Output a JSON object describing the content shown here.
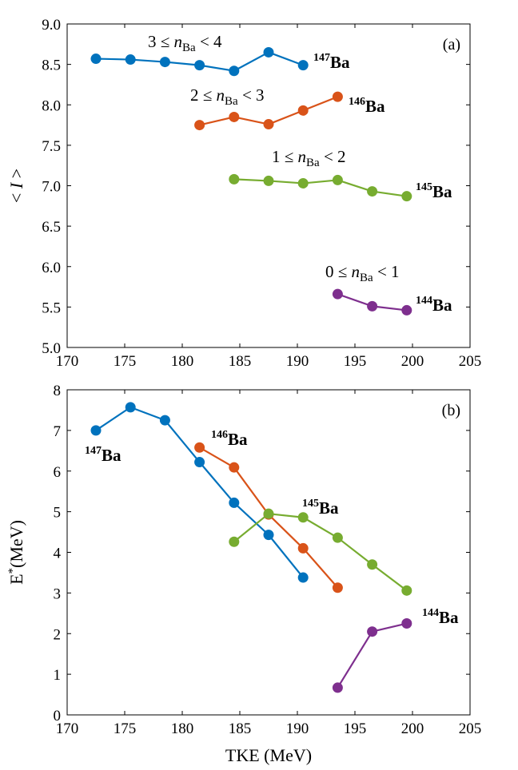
{
  "colors": {
    "Ba147": "#0072BD",
    "Ba146": "#D95319",
    "Ba145": "#77AC30",
    "Ba144": "#7E2F8E"
  },
  "chart_data": [
    {
      "type": "line",
      "panel": "(a)",
      "xlabel": "",
      "ylabel": "< I >",
      "xlim": [
        170,
        205
      ],
      "ylim": [
        5.0,
        9.0
      ],
      "xticks": [
        "170",
        "175",
        "180",
        "185",
        "190",
        "195",
        "200",
        "205"
      ],
      "yticks": [
        "5.0",
        "5.5",
        "6.0",
        "6.5",
        "7.0",
        "7.5",
        "8.0",
        "8.5",
        "9.0"
      ],
      "series": [
        {
          "name": "147Ba",
          "mass": "147",
          "element": "Ba",
          "color_key": "Ba147",
          "range": {
            "lo": "3",
            "hi": "4"
          },
          "x": [
            172.5,
            175.5,
            178.5,
            181.5,
            184.5,
            187.5,
            190.5
          ],
          "y": [
            8.57,
            8.56,
            8.53,
            8.49,
            8.42,
            8.65,
            8.49
          ]
        },
        {
          "name": "146Ba",
          "mass": "146",
          "element": "Ba",
          "color_key": "Ba146",
          "range": {
            "lo": "2",
            "hi": "3"
          },
          "x": [
            181.5,
            184.5,
            187.5,
            190.5,
            193.5
          ],
          "y": [
            7.75,
            7.85,
            7.76,
            7.93,
            8.1
          ]
        },
        {
          "name": "145Ba",
          "mass": "145",
          "element": "Ba",
          "color_key": "Ba145",
          "range": {
            "lo": "1",
            "hi": "2"
          },
          "x": [
            184.5,
            187.5,
            190.5,
            193.5,
            196.5,
            199.5
          ],
          "y": [
            7.08,
            7.06,
            7.03,
            7.07,
            6.93,
            6.87
          ]
        },
        {
          "name": "144Ba",
          "mass": "144",
          "element": "Ba",
          "color_key": "Ba144",
          "range": {
            "lo": "0",
            "hi": "1"
          },
          "x": [
            193.5,
            196.5,
            199.5
          ],
          "y": [
            5.66,
            5.51,
            5.46
          ]
        }
      ]
    },
    {
      "type": "line",
      "panel": "(b)",
      "xlabel": "TKE (MeV)",
      "ylabel": "E* (MeV)",
      "xlim": [
        170,
        205
      ],
      "ylim": [
        0,
        8
      ],
      "xticks": [
        "170",
        "175",
        "180",
        "185",
        "190",
        "195",
        "200",
        "205"
      ],
      "yticks": [
        "0",
        "1",
        "2",
        "3",
        "4",
        "5",
        "6",
        "7",
        "8"
      ],
      "series": [
        {
          "name": "147Ba",
          "mass": "147",
          "element": "Ba",
          "color_key": "Ba147",
          "x": [
            172.5,
            175.5,
            178.5,
            181.5,
            184.5,
            187.5,
            190.5
          ],
          "y": [
            7.0,
            7.57,
            7.25,
            6.22,
            5.22,
            4.43,
            3.38
          ]
        },
        {
          "name": "146Ba",
          "mass": "146",
          "element": "Ba",
          "color_key": "Ba146",
          "x": [
            181.5,
            184.5,
            187.5,
            190.5,
            193.5
          ],
          "y": [
            6.58,
            6.09,
            4.93,
            4.1,
            3.13
          ]
        },
        {
          "name": "145Ba",
          "mass": "145",
          "element": "Ba",
          "color_key": "Ba145",
          "x": [
            184.5,
            187.5,
            190.5,
            193.5,
            196.5,
            199.5
          ],
          "y": [
            4.26,
            4.95,
            4.86,
            4.36,
            3.7,
            3.06
          ]
        },
        {
          "name": "144Ba",
          "mass": "144",
          "element": "Ba",
          "color_key": "Ba144",
          "x": [
            193.5,
            196.5,
            199.5
          ],
          "y": [
            0.67,
            2.05,
            2.25
          ]
        }
      ]
    }
  ],
  "labels": {
    "n_symbol": "n",
    "n_sub": "Ba",
    "leq": "≤",
    "lt": "<",
    "ylabel_a_left": "<",
    "ylabel_a_var": "I",
    "ylabel_a_right": ">",
    "ylabel_b_main": "E",
    "ylabel_b_sup": "*",
    "ylabel_b_unit": "(MeV)"
  }
}
